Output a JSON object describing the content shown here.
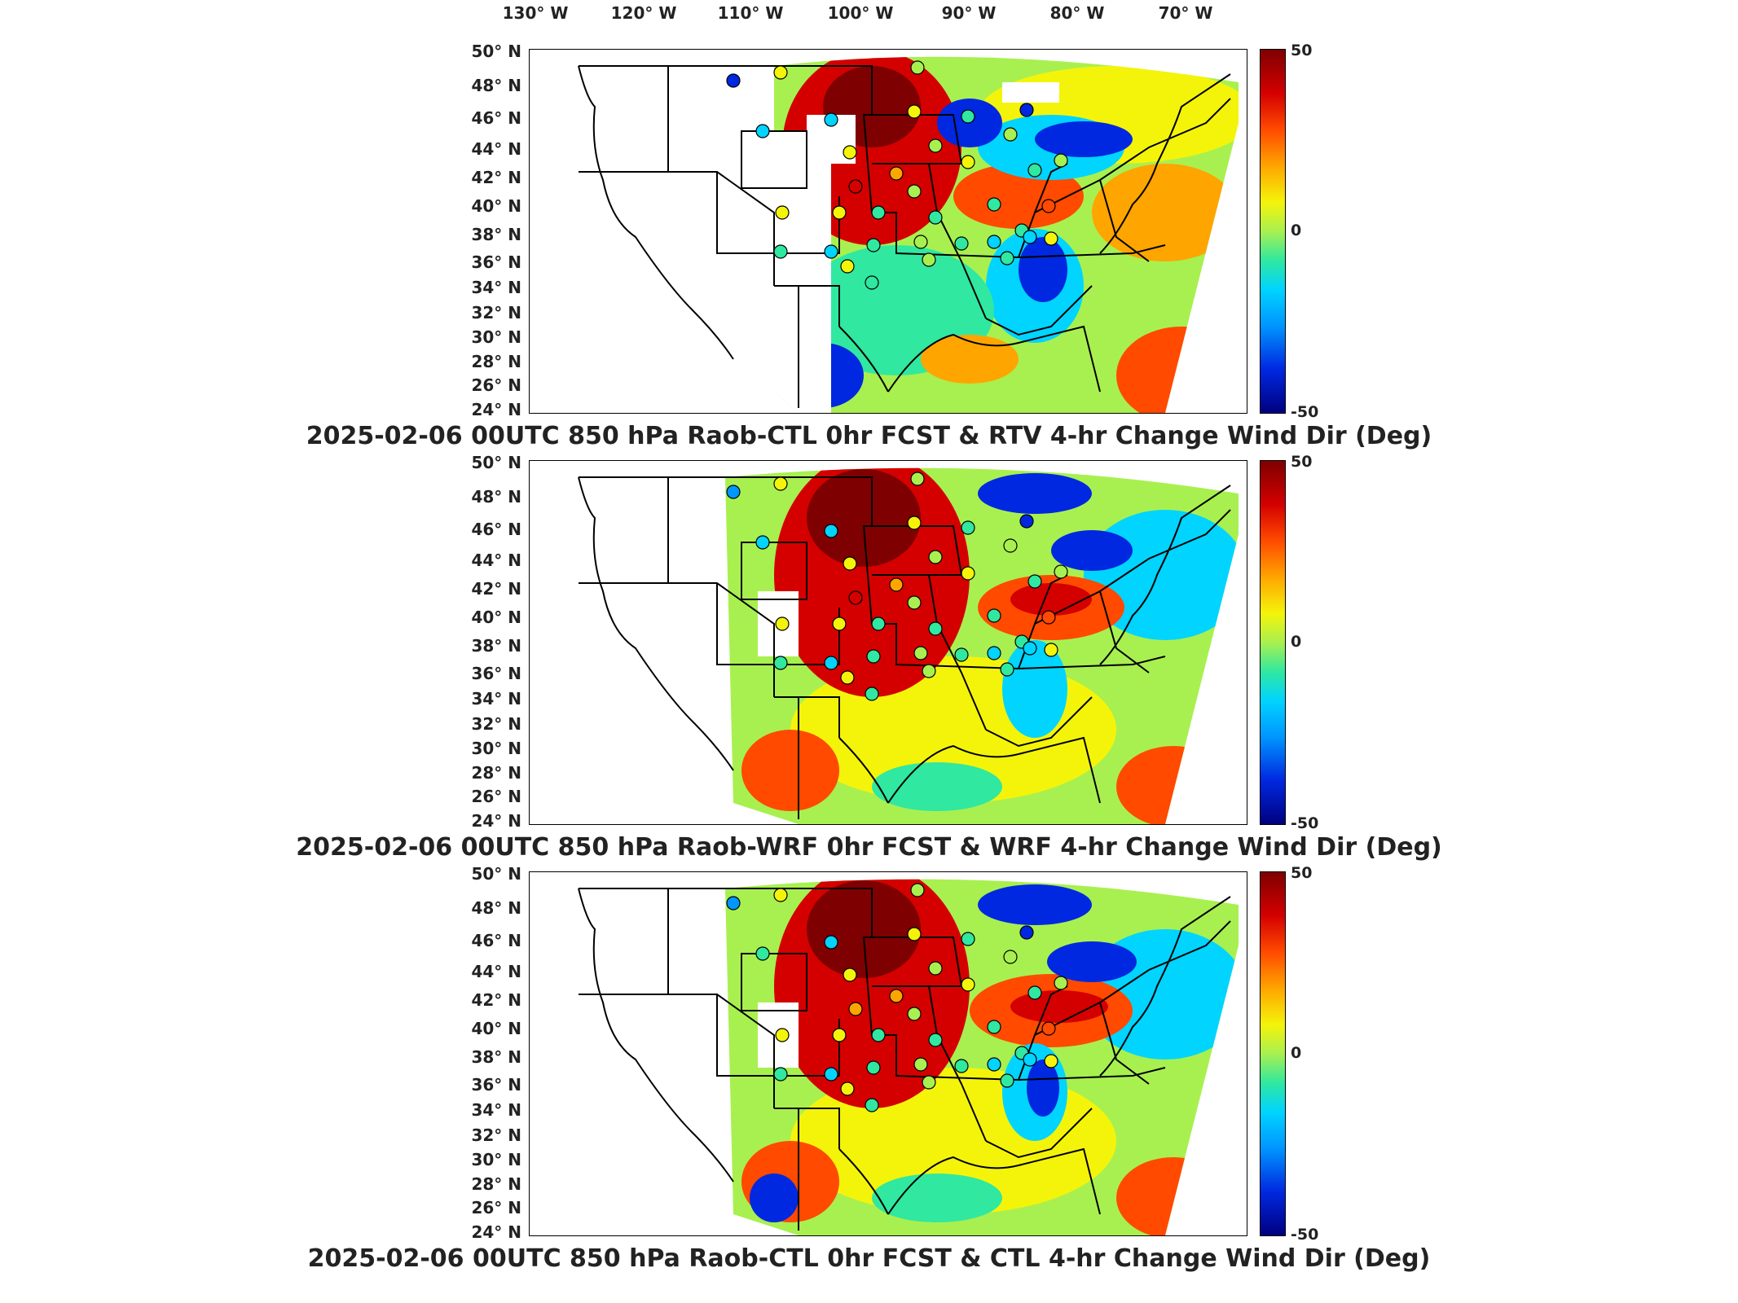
{
  "longitude_labels": [
    "130° W",
    "120° W",
    "110° W",
    "100° W",
    "90° W",
    "80° W",
    "70° W"
  ],
  "latitude_labels": [
    "50° N",
    "48° N",
    "46° N",
    "44° N",
    "42° N",
    "40° N",
    "38° N",
    "36° N",
    "34° N",
    "32° N",
    "30° N",
    "28° N",
    "26° N",
    "24° N"
  ],
  "colorbar": {
    "max_label": "50",
    "mid_label": "0",
    "min_label": "-50",
    "range": [
      -50,
      50
    ]
  },
  "panels": [
    {
      "title": "2025-02-06 00UTC 850 hPa Raob-CTL 0hr FCST & RTV 4-hr Change Wind Dir (Deg)"
    },
    {
      "title": "2025-02-06 00UTC 850 hPa Raob-WRF 0hr FCST & WRF 4-hr Change Wind Dir (Deg)"
    },
    {
      "title": "2025-02-06 00UTC 850 hPa Raob-CTL 0hr FCST & CTL 4-hr Change Wind Dir (Deg)"
    }
  ],
  "colors": {
    "positive_max": "#7f0000",
    "zero": "#a8f050",
    "negative_max": "#00007f",
    "no_data": "#ffffff"
  }
}
